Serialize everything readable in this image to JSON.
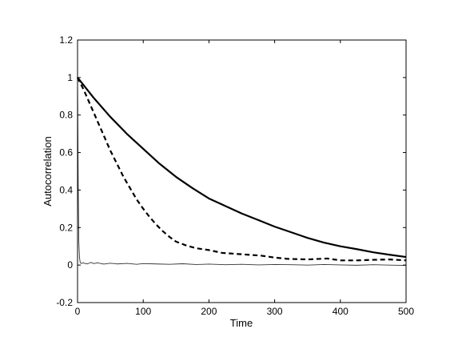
{
  "chart_data": {
    "type": "line",
    "title": "",
    "xlabel": "Time",
    "ylabel": "Autocorrelation",
    "xlim": [
      0,
      500
    ],
    "ylim": [
      -0.2,
      1.2
    ],
    "grid": false,
    "legend": "none",
    "x_ticks": [
      0,
      100,
      200,
      300,
      400,
      500
    ],
    "x_tick_labels": [
      "0",
      "100",
      "200",
      "300",
      "400",
      "500"
    ],
    "y_ticks": [
      -0.2,
      0,
      0.2,
      0.4,
      0.6,
      0.8,
      1,
      1.2
    ],
    "y_tick_labels": [
      "-0.2",
      "0",
      "0.2",
      "0.4",
      "0.6",
      "0.8",
      "1",
      "1.2"
    ],
    "series": [
      {
        "style": "solid-thick",
        "color": "#000000",
        "x": [
          0,
          25,
          50,
          75,
          100,
          125,
          150,
          175,
          200,
          225,
          250,
          275,
          300,
          325,
          350,
          375,
          400,
          425,
          450,
          475,
          500
        ],
        "y": [
          1.0,
          0.89,
          0.79,
          0.7,
          0.62,
          0.54,
          0.47,
          0.41,
          0.355,
          0.315,
          0.275,
          0.24,
          0.205,
          0.175,
          0.145,
          0.12,
          0.1,
          0.085,
          0.068,
          0.055,
          0.043
        ]
      },
      {
        "style": "dashed-thick",
        "color": "#000000",
        "x": [
          0,
          10,
          20,
          30,
          40,
          50,
          60,
          70,
          80,
          90,
          100,
          110,
          120,
          130,
          140,
          150,
          165,
          180,
          200,
          220,
          240,
          260,
          280,
          300,
          320,
          350,
          380,
          400,
          425,
          450,
          475,
          500
        ],
        "y": [
          1.0,
          0.93,
          0.85,
          0.77,
          0.69,
          0.61,
          0.54,
          0.47,
          0.41,
          0.35,
          0.3,
          0.255,
          0.215,
          0.18,
          0.15,
          0.125,
          0.105,
          0.09,
          0.08,
          0.065,
          0.06,
          0.055,
          0.05,
          0.04,
          0.033,
          0.03,
          0.035,
          0.025,
          0.025,
          0.028,
          0.03,
          0.025
        ]
      },
      {
        "style": "solid-thin-noisy",
        "color": "#333333",
        "x": [
          0,
          1,
          2,
          3,
          4,
          5,
          6,
          8,
          10,
          15,
          20,
          25,
          30,
          40,
          50,
          60,
          75,
          90,
          100,
          120,
          140,
          160,
          180,
          200,
          225,
          250,
          275,
          300,
          325,
          350,
          375,
          400,
          425,
          450,
          475,
          500
        ],
        "y": [
          1.0,
          0.45,
          0.12,
          0.04,
          0.015,
          0.01,
          0.008,
          0.012,
          0.01,
          0.006,
          0.014,
          0.008,
          0.012,
          0.005,
          0.01,
          0.006,
          0.009,
          0.004,
          0.008,
          0.006,
          0.004,
          0.007,
          0.003,
          0.005,
          0.002,
          0.004,
          0.001,
          0.003,
          0.002,
          0.0,
          0.003,
          0.001,
          -0.001,
          0.002,
          0.0,
          -0.002
        ]
      }
    ]
  }
}
